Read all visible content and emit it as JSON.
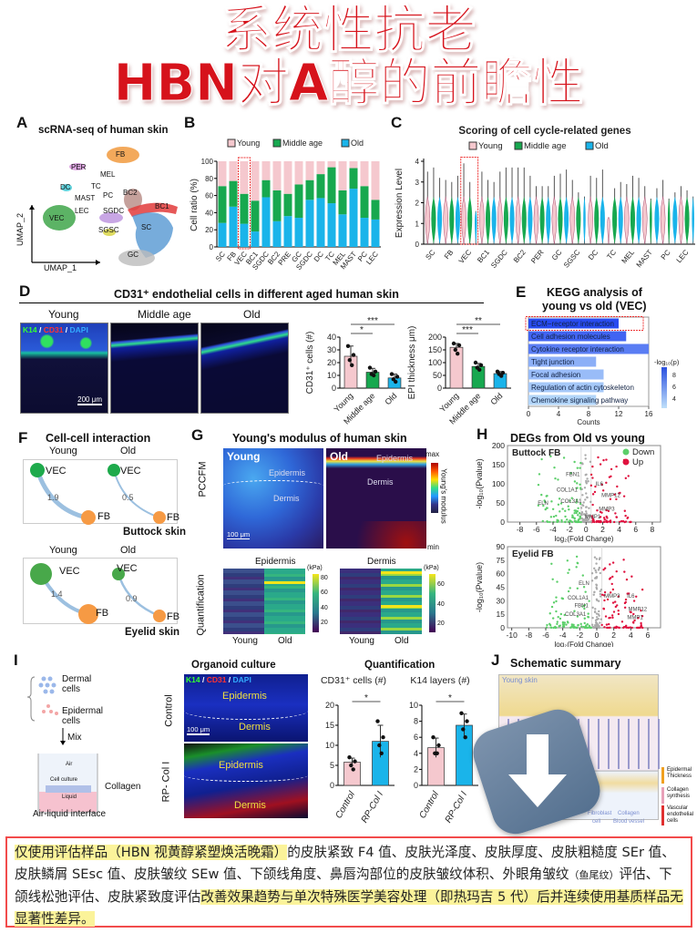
{
  "title": {
    "line1": "系统性抗老",
    "line2": "HBN对A醇的前瞻性"
  },
  "panelA": {
    "letter": "A",
    "title": "scRNA-seq of human skin",
    "xaxis": "UMAP_1",
    "yaxis": "UMAP_2",
    "clusters": [
      "FB",
      "PER",
      "MEL",
      "TC",
      "DC",
      "MAST",
      "PC",
      "BC2",
      "BC1",
      "LEC",
      "VEC",
      "SGDC",
      "SGSC",
      "SC",
      "GC"
    ]
  },
  "panelB": {
    "letter": "B"
  },
  "panelC": {
    "letter": "C"
  },
  "panelD": {
    "letter": "D",
    "title": "CD31⁺ endothelial cells in different aged human skin",
    "images": [
      "Young",
      "Middle age",
      "Old"
    ],
    "stain": {
      "k14": "K14",
      "sep1": " / ",
      "cd31": "CD31",
      "sep2": " / ",
      "dapi": "DAPI"
    },
    "scale": "200 μm"
  },
  "panelE": {
    "letter": "E",
    "title1": "KEGG analysis of",
    "title2": "young vs old (VEC)",
    "colorbar_label": "-log₁₀(p)",
    "colorbar_ticks": [
      "8",
      "6",
      "4"
    ]
  },
  "panelF": {
    "letter": "F",
    "title": "Cell-cell interaction",
    "buttock": {
      "young": "Young",
      "old": "Old",
      "tissue": "Buttock skin",
      "young_value": "1.9",
      "old_value": "0.5"
    },
    "eyelid": {
      "young": "Young",
      "old": "Old",
      "tissue": "Eyelid skin",
      "young_value": "1.4",
      "old_value": "0.9"
    },
    "nodes": {
      "vec": "VEC",
      "fb": "FB"
    }
  },
  "panelG": {
    "letter": "G",
    "title": "Young's modulus of human skin",
    "row1": "PCCFM",
    "row2": "Quantification",
    "young": "Young",
    "old": "Old",
    "epidermis": "Epidermis",
    "dermis": "Dermis",
    "scale": "100 μm",
    "cbar_max": "max",
    "cbar_min": "min",
    "cbar_label": "Young's modulus",
    "heat_epi": {
      "title": "Epidermis",
      "unit": "(kPa)",
      "ticks": [
        "80",
        "60",
        "40",
        "20"
      ],
      "x": [
        "Young",
        "Old"
      ]
    },
    "heat_derm": {
      "title": "Dermis",
      "unit": "(kPa)",
      "ticks": [
        "60",
        "40",
        "20"
      ],
      "x": [
        "Young",
        "Old"
      ]
    }
  },
  "panelH": {
    "letter": "H",
    "title": "DEGs from Old vs young",
    "legend": {
      "down": "Down",
      "up": "Up"
    }
  },
  "panelI": {
    "letter": "I",
    "dermal": "Dermal cells",
    "epidermal": "Epidermal cells",
    "mix": "Mix",
    "air": "Air",
    "cell_culture": "Cell culture",
    "liquid": "Liquid",
    "collagen": "Collagen",
    "ali": "Air-liquid interface",
    "organoid_title": "Organoid culture",
    "quant_title": "Quantification",
    "rows": [
      "Control",
      "RP- Col I"
    ],
    "epidermis": "Epidermis",
    "dermis": "Dermis",
    "scale": "100 μm",
    "stain": {
      "k14": "K14",
      "sep1": " / ",
      "cd31": "CD31",
      "sep2": " / ",
      "dapi": "DAPI"
    }
  },
  "panelJ": {
    "letter": "J",
    "title": "Schematic summary",
    "young_skin": "Young skin",
    "legend": [
      "Epidermal Thickness",
      "Collagen synthesis",
      "Vascular endothelial cells"
    ],
    "bottom": [
      "Fibroblast",
      "Collagen",
      "cell",
      "Blood vessel"
    ]
  },
  "footnote": {
    "seg1": "仅使用评估样品（HBN 视黄醇紧塑焕活晚霜）",
    "seg2": "的皮肤紧致 F4 值、皮肤光泽度、皮肤厚度、皮肤粗糙度 SEr 值、皮肤鳞屑 SEsc 值、皮肤皱纹 SEw 值、下颌线角度、鼻唇沟部位的皮肤皱纹体积、外眼角皱纹",
    "seg2small": "（鱼尾纹）",
    "seg3": "评估、下颌线松弛评估、皮肤紧致度评估",
    "seg4": "改善效果趋势与单次特殊医学美容处理（即热玛吉 5 代）后并连续使用基质样品无显著性差异。"
  },
  "colors": {
    "young": "#f5c8ce",
    "middle": "#17a84f",
    "old": "#1ab4ea",
    "title_red": "#d6121b",
    "up": "#e0123f",
    "down": "#5ccf6a"
  },
  "chart_data": [
    {
      "id": "B",
      "type": "bar",
      "stacked": true,
      "title": "",
      "ylabel": "Cell ratio (%)",
      "xlabel": "",
      "ylim": [
        0,
        100
      ],
      "yticks": [
        "0",
        "20",
        "40",
        "60",
        "80",
        "100"
      ],
      "legend": [
        "Young",
        "Middle age",
        "Old"
      ],
      "legend_position": "top",
      "categories": [
        "SC",
        "FB",
        "VEC",
        "BC1",
        "SGDC",
        "BC2",
        "PRE",
        "GC",
        "SGDC",
        "DC",
        "TC",
        "MEL",
        "MAST",
        "PC",
        "LEC"
      ],
      "series": [
        {
          "name": "Old",
          "values": [
            28,
            47,
            27,
            18,
            58,
            30,
            36,
            34,
            55,
            57,
            51,
            38,
            68,
            34,
            32
          ]
        },
        {
          "name": "Middle age",
          "values": [
            43,
            30,
            35,
            36,
            20,
            36,
            26,
            39,
            23,
            28,
            42,
            28,
            24,
            37,
            23
          ]
        },
        {
          "name": "Young",
          "values": [
            29,
            23,
            38,
            46,
            22,
            34,
            38,
            27,
            22,
            15,
            7,
            34,
            8,
            29,
            45
          ]
        }
      ],
      "highlight": "VEC"
    },
    {
      "id": "C",
      "type": "violin",
      "title": "Scoring of cell cycle-related genes",
      "ylabel": "Expression Level",
      "ylim": [
        0,
        4
      ],
      "yticks": [
        "0",
        "1",
        "2",
        "3",
        "4"
      ],
      "legend": [
        "Young",
        "Middle age",
        "Old"
      ],
      "categories": [
        "SC",
        "FB",
        "VEC",
        "BC1",
        "SGDC",
        "BC2",
        "PER",
        "GC",
        "SGSC",
        "DC",
        "TC",
        "MEL",
        "MAST",
        "PC",
        "LEC"
      ],
      "series": [
        {
          "name": "Young",
          "max": [
            3.5,
            3.1,
            3.9,
            3.5,
            3.5,
            3.7,
            2.8,
            3.3,
            3.1,
            3.3,
            1.3,
            2.9,
            2.8,
            3.1,
            2.8
          ]
        },
        {
          "name": "Middle age",
          "max": [
            3.7,
            3.0,
            3.0,
            3.1,
            3.7,
            3.7,
            2.8,
            3.4,
            2.5,
            3.2,
            2.7,
            3.3,
            2.2,
            2.2,
            2.6
          ]
        },
        {
          "name": "Old",
          "max": [
            3.2,
            3.3,
            1.6,
            3.0,
            3.7,
            3.3,
            2.8,
            3.6,
            2.3,
            3.6,
            3.0,
            3.2,
            2.7,
            2.5,
            2.3
          ]
        }
      ],
      "highlight": "VEC"
    },
    {
      "id": "D1",
      "type": "bar",
      "ylabel": "CD31⁺ cells (#)",
      "ylim": [
        0,
        40
      ],
      "yticks": [
        "0",
        "10",
        "20",
        "30",
        "40"
      ],
      "categories": [
        "Young",
        "Middle age",
        "Old"
      ],
      "values": [
        25,
        12.5,
        8
      ],
      "errors": [
        8,
        3,
        3
      ],
      "points": [
        [
          33,
          26,
          22,
          18
        ],
        [
          16,
          13,
          11,
          10
        ],
        [
          11,
          9,
          7,
          5
        ]
      ],
      "significance": [
        {
          "from": 0,
          "to": 1,
          "label": "*"
        },
        {
          "from": 0,
          "to": 2,
          "label": "***"
        }
      ]
    },
    {
      "id": "D2",
      "type": "bar",
      "ylabel": "EPI thickness μm)",
      "ylim": [
        0,
        200
      ],
      "yticks": [
        "0",
        "50",
        "100",
        "150",
        "200"
      ],
      "categories": [
        "Young",
        "Middle age",
        "Old"
      ],
      "values": [
        160,
        85,
        57
      ],
      "errors": [
        15,
        12,
        8
      ],
      "points": [
        [
          175,
          168,
          150,
          135
        ],
        [
          100,
          90,
          80,
          72
        ],
        [
          65,
          60,
          55,
          48
        ]
      ],
      "significance": [
        {
          "from": 0,
          "to": 1,
          "label": "***"
        },
        {
          "from": 0,
          "to": 2,
          "label": "**"
        }
      ]
    },
    {
      "id": "E",
      "type": "bar",
      "orientation": "horizontal",
      "xlabel": "Counts",
      "xlim": [
        0,
        16
      ],
      "xticks": [
        "0",
        "4",
        "8",
        "12",
        "16"
      ],
      "categories": [
        "ECM−receptor interaction",
        "Cell adhesion molecules",
        "Cytokine receptor interaction",
        "Tight junction",
        "Focal adhesion",
        "Regulation of actin cytoskeleton",
        "Chemokine signaling pathway"
      ],
      "values": [
        12,
        13,
        16,
        9,
        10,
        10,
        9
      ],
      "neglog10p": [
        9,
        8,
        7,
        5,
        4.5,
        4,
        3.5
      ],
      "highlight": "ECM−receptor interaction"
    },
    {
      "id": "I1",
      "type": "bar",
      "title": "CD31⁺ cells (#)",
      "ylim": [
        0,
        20
      ],
      "yticks": [
        "0",
        "5",
        "10",
        "15",
        "20"
      ],
      "categories": [
        "Control",
        "RP-Col I"
      ],
      "values": [
        5.8,
        11
      ],
      "errors": [
        1,
        4
      ],
      "points": [
        [
          7,
          6,
          5,
          4
        ],
        [
          16,
          12,
          10,
          8
        ]
      ],
      "significance": [
        {
          "from": 0,
          "to": 1,
          "label": "*"
        }
      ]
    },
    {
      "id": "I2",
      "type": "bar",
      "title": "K14 layers (#)",
      "ylim": [
        0,
        10
      ],
      "yticks": [
        "0",
        "2",
        "4",
        "6",
        "8",
        "10"
      ],
      "categories": [
        "Control",
        "RP-Col I"
      ],
      "values": [
        4.7,
        7.5
      ],
      "errors": [
        1.2,
        1.4
      ],
      "points": [
        [
          6,
          5,
          4,
          4
        ],
        [
          9,
          8,
          7,
          6
        ]
      ],
      "significance": [
        {
          "from": 0,
          "to": 1,
          "label": "*"
        }
      ]
    },
    {
      "id": "H1",
      "type": "scatter",
      "title": "Buttock FB",
      "xlabel": "log₂(Fold Change)",
      "ylabel": "-log₁₀(Pvalue)",
      "xlim": [
        -9.5,
        9
      ],
      "ylim": [
        0,
        200
      ],
      "xticks": [
        "-8",
        "-6",
        "-4",
        "-2",
        "0",
        "2",
        "4",
        "6",
        "8"
      ],
      "xtickvals": [
        -8,
        -6,
        -4,
        -2,
        0,
        2,
        4,
        6,
        8
      ],
      "yticks": [
        "0",
        "50",
        "100",
        "150",
        "200"
      ],
      "genes": [
        {
          "name": "FBN1",
          "x": -1.6,
          "y": 120
        },
        {
          "name": "COL1A1",
          "x": -2.3,
          "y": 80
        },
        {
          "name": "ELN",
          "x": -5.2,
          "y": 45
        },
        {
          "name": "COL3A1",
          "x": -1.8,
          "y": 50
        },
        {
          "name": "IL6",
          "x": 1.6,
          "y": 95
        },
        {
          "name": "MMP12",
          "x": 3.0,
          "y": 65
        },
        {
          "name": "MMP3",
          "x": 2.5,
          "y": 30
        },
        {
          "name": "MMP1",
          "x": 0.8,
          "y": 10
        }
      ]
    },
    {
      "id": "H2",
      "type": "scatter",
      "title": "Eyelid FB",
      "xlabel": "log₂(Fold Change)",
      "ylabel": "-log₁₀(Pvalue)",
      "xlim": [
        -10.5,
        7.5
      ],
      "ylim": [
        0,
        95
      ],
      "xticks": [
        "-10",
        "-8",
        "-6",
        "-4",
        "-2",
        "0",
        "2",
        "4",
        "6"
      ],
      "xtickvals": [
        -10,
        -8,
        -6,
        -4,
        -2,
        0,
        2,
        4,
        6
      ],
      "yticks": [
        "0",
        "15",
        "30",
        "45",
        "60",
        "75",
        "90"
      ],
      "genes": [
        {
          "name": "ELN",
          "x": -1.5,
          "y": 50
        },
        {
          "name": "COL1A1",
          "x": -2.2,
          "y": 33
        },
        {
          "name": "FBN1",
          "x": -1.8,
          "y": 24
        },
        {
          "name": "COL3A1",
          "x": -2.5,
          "y": 14
        },
        {
          "name": "MMP3",
          "x": 1.8,
          "y": 35
        },
        {
          "name": "IL6",
          "x": 4,
          "y": 35
        },
        {
          "name": "MMP12",
          "x": 4.8,
          "y": 20
        },
        {
          "name": "MMP1",
          "x": 4.5,
          "y": 10
        }
      ]
    }
  ]
}
